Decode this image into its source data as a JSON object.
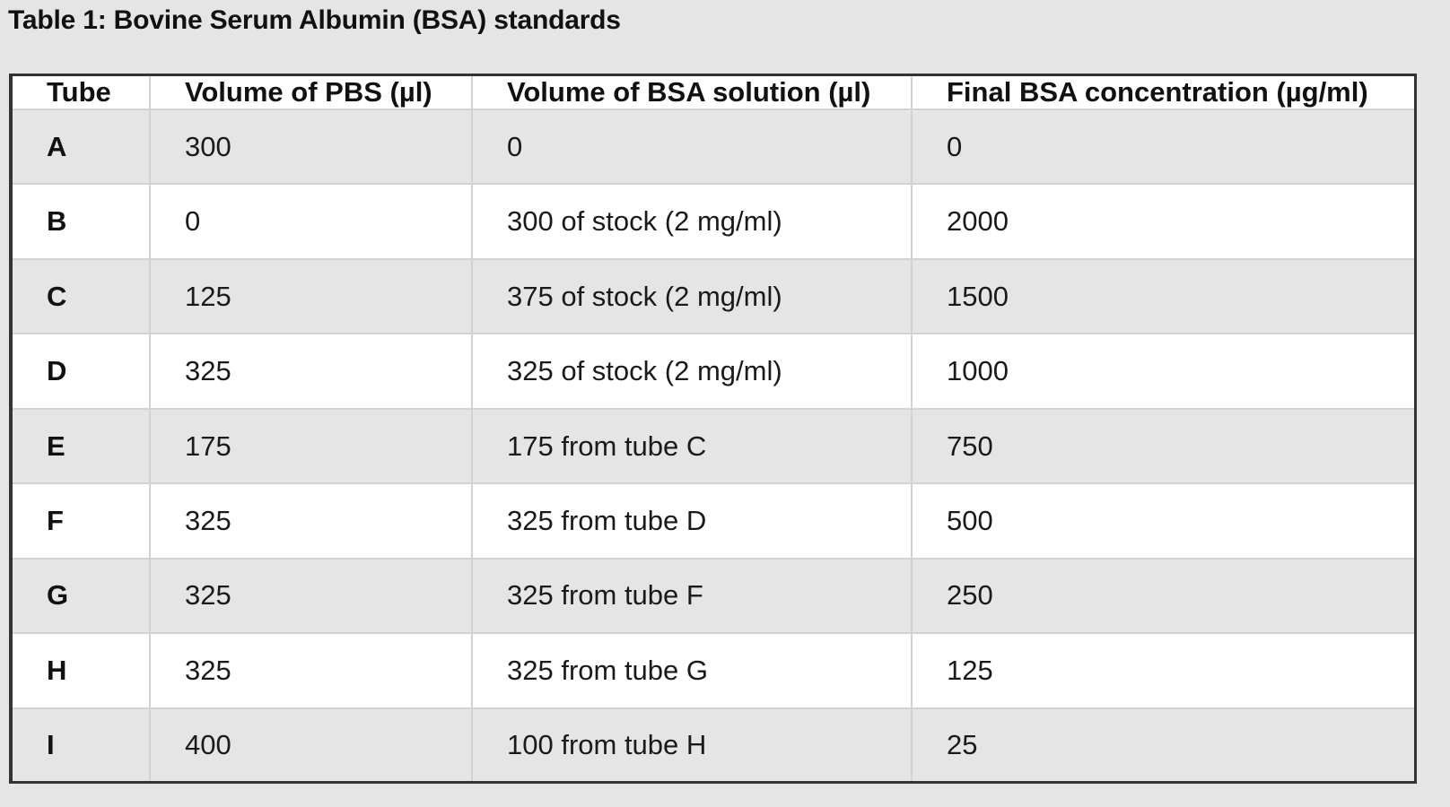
{
  "caption": "Table 1: Bovine Serum Albumin (BSA) standards",
  "table": {
    "headers": [
      "Tube",
      "Volume of PBS (µl)",
      "Volume of BSA solution (µl)",
      "Final BSA concentration (µg/ml)"
    ],
    "rows": [
      [
        "A",
        "300",
        "0",
        "0"
      ],
      [
        "B",
        "0",
        "300 of stock (2 mg/ml)",
        "2000"
      ],
      [
        "C",
        "125",
        "375 of stock (2 mg/ml)",
        "1500"
      ],
      [
        "D",
        "325",
        "325 of stock (2 mg/ml)",
        "1000"
      ],
      [
        "E",
        "175",
        "175 from tube C",
        "750"
      ],
      [
        "F",
        "325",
        "325 from tube D",
        "500"
      ],
      [
        "G",
        "325",
        "325 from tube F",
        "250"
      ],
      [
        "H",
        "325",
        "325 from tube G",
        "125"
      ],
      [
        "I",
        "400",
        "100 from tube H",
        "25"
      ]
    ]
  },
  "colors": {
    "background": "#e5e5e5",
    "row_alt": "#e5e5e5",
    "row_plain": "#ffffff",
    "frame_border": "#333333",
    "cell_border": "#d2d2d2",
    "text": "#111111"
  }
}
